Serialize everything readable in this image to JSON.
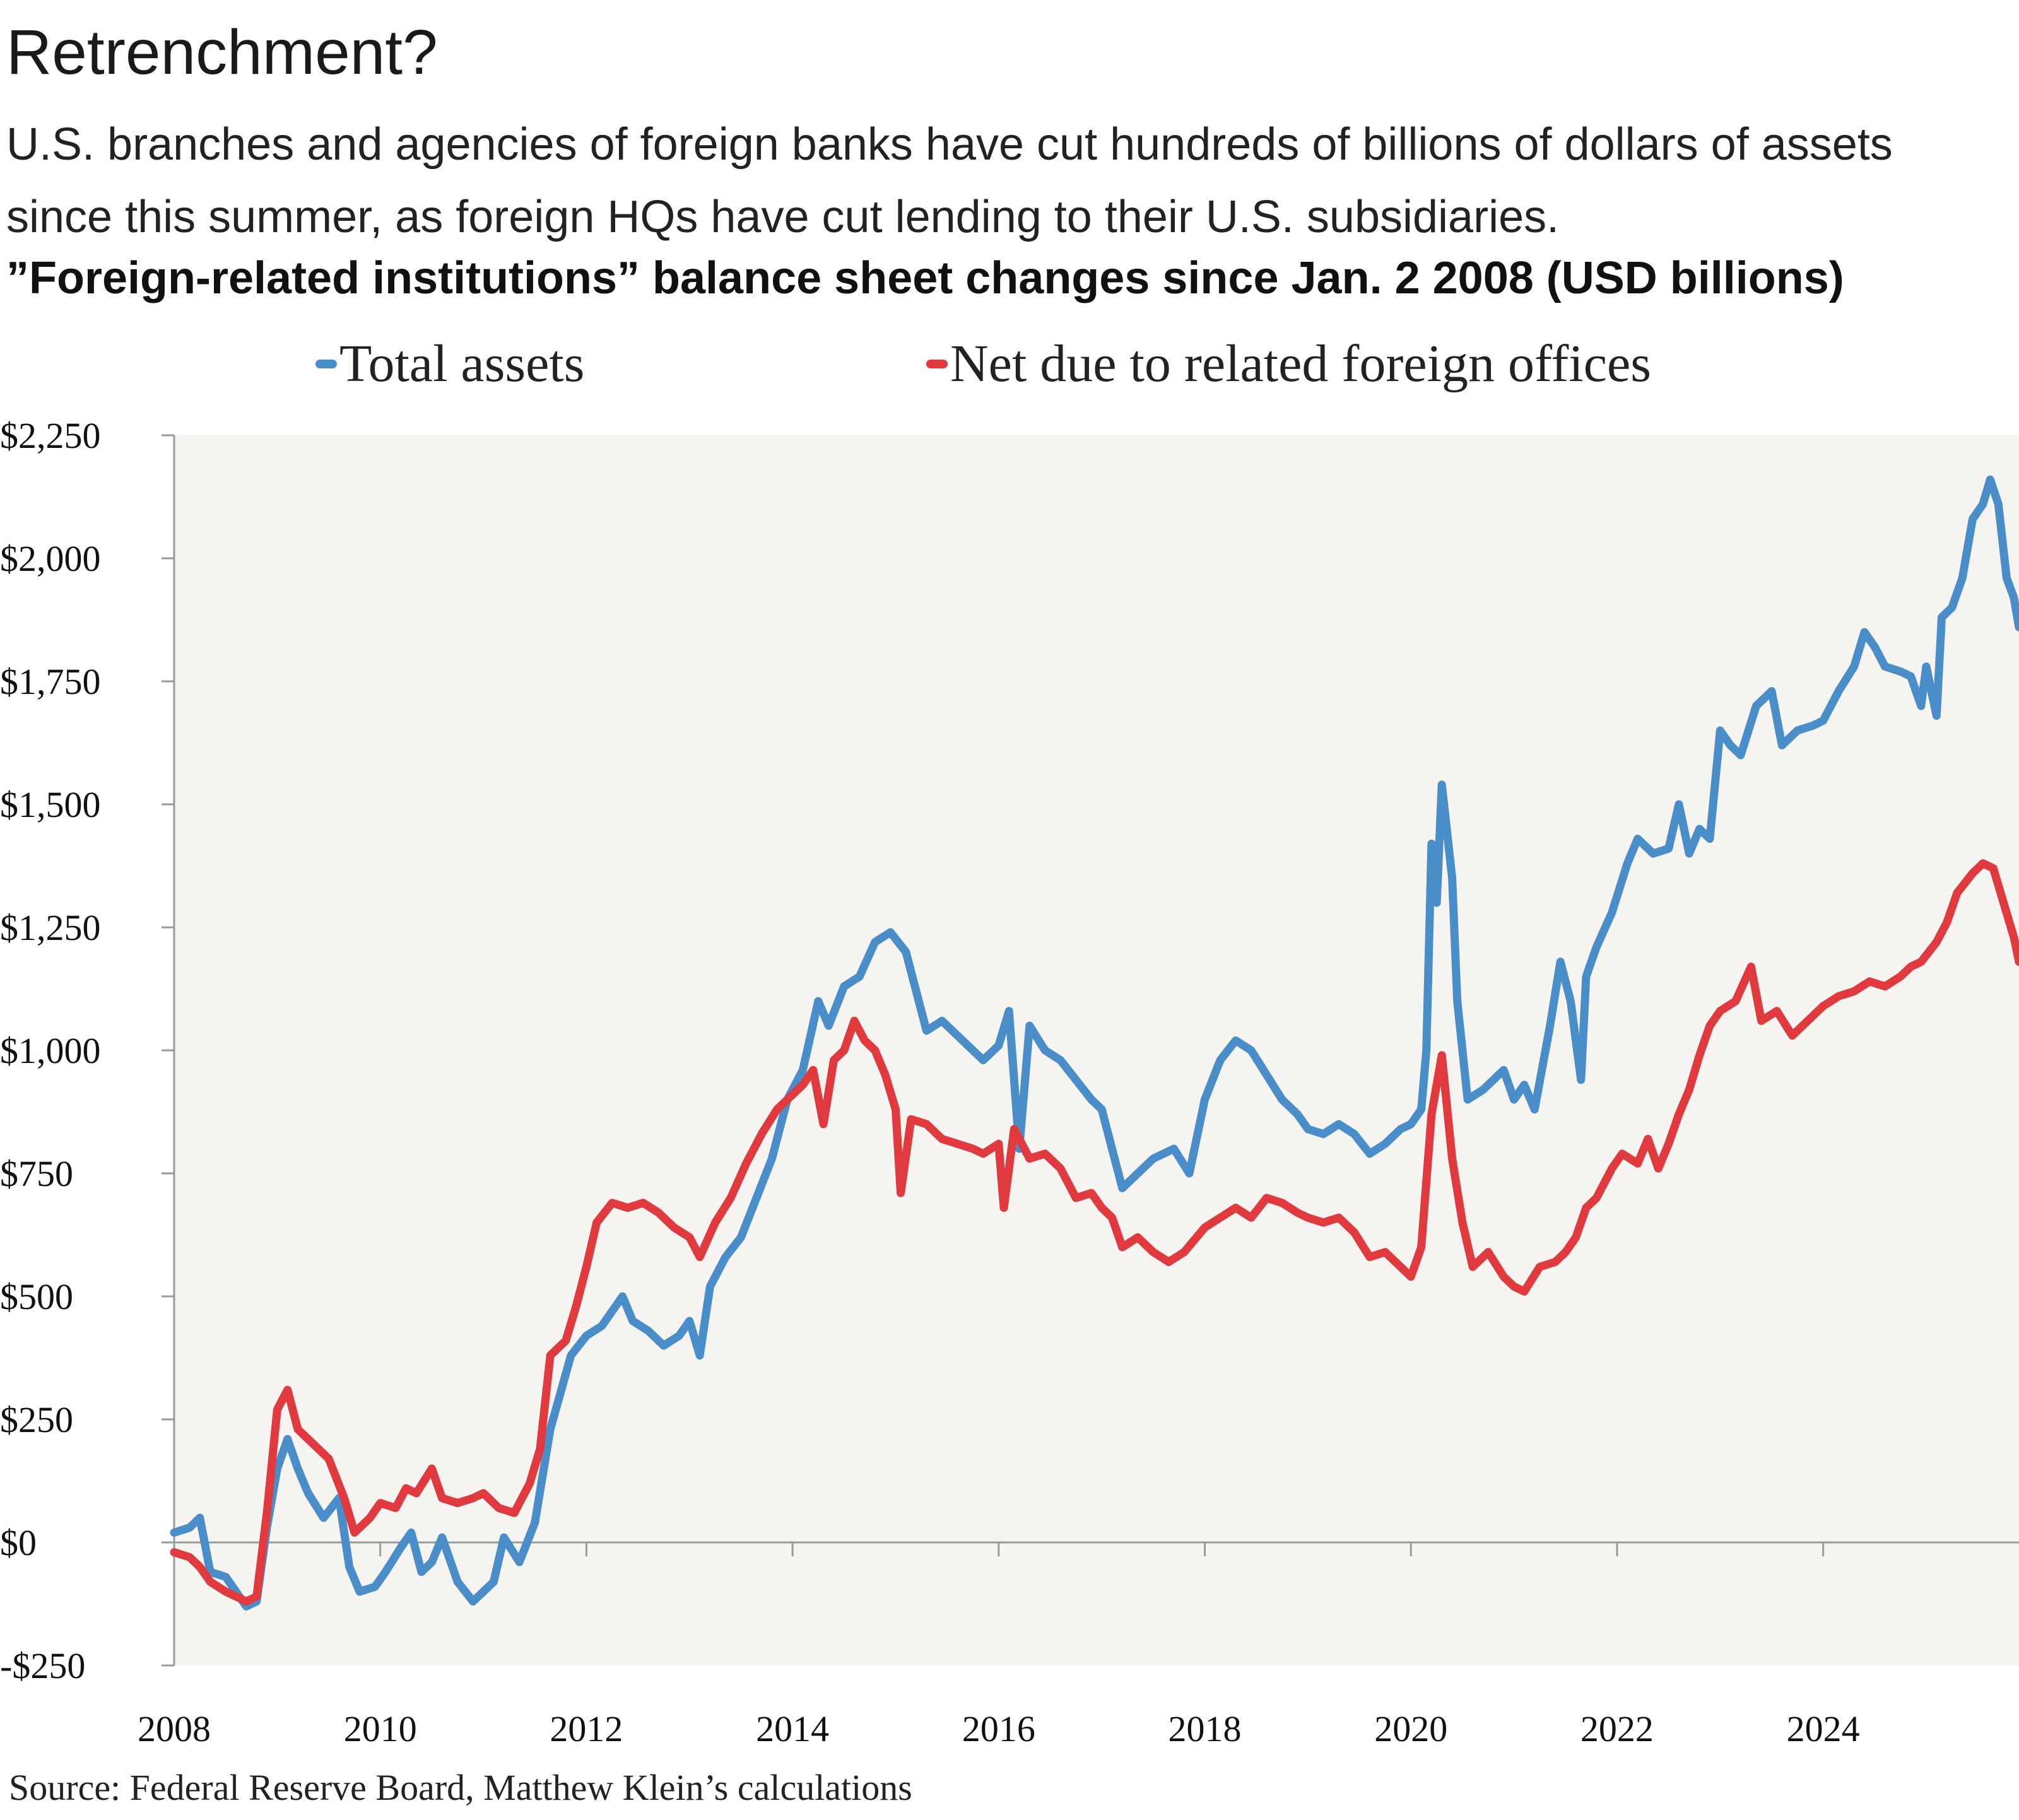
{
  "header": {
    "title": "Retrenchment?",
    "subtitle": "U.S. branches and agencies of foreign banks have cut hundreds of billions of dollars of assets since this summer, as foreign HQs have cut lending to their U.S. subsidiaries.",
    "chart_heading": "”Foreign-related institutions” balance sheet changes since Jan. 2 2008 (USD billions)"
  },
  "footer": {
    "source": "Source: Federal Reserve Board, Matthew Klein’s calculations"
  },
  "colors": {
    "total_assets": "#4a8ec9",
    "net_due": "#e0393e",
    "plot_bg": "#f6f4f1",
    "axis": "#9a9a9a"
  },
  "chart_data": {
    "type": "line",
    "title": "”Foreign-related institutions” balance sheet changes since Jan. 2 2008 (USD billions)",
    "xlabel": "",
    "ylabel": "",
    "xlim": [
      2008.0,
      2025.9
    ],
    "ylim": [
      -250,
      2250
    ],
    "x_ticks": [
      2008,
      2010,
      2012,
      2014,
      2016,
      2018,
      2020,
      2022,
      2024
    ],
    "x_tick_labels": [
      "2008",
      "2010",
      "2012",
      "2014",
      "2016",
      "2018",
      "2020",
      "2022",
      "2024"
    ],
    "y_ticks": [
      -250,
      0,
      250,
      500,
      750,
      1000,
      1250,
      1500,
      1750,
      2000,
      2250
    ],
    "y_tick_labels": [
      "-$250",
      "$0",
      "$250",
      "$500",
      "$750",
      "$1,000",
      "$1,250",
      "$1,500",
      "$1,750",
      "$2,000",
      "$2,250"
    ],
    "grid": false,
    "legend_position": "top",
    "series": [
      {
        "name": "Total assets",
        "color": "#4a8ec9",
        "points": [
          [
            2008.0,
            20
          ],
          [
            2008.15,
            30
          ],
          [
            2008.25,
            50
          ],
          [
            2008.35,
            -60
          ],
          [
            2008.5,
            -70
          ],
          [
            2008.6,
            -100
          ],
          [
            2008.7,
            -130
          ],
          [
            2008.8,
            -120
          ],
          [
            2008.9,
            30
          ],
          [
            2009.0,
            150
          ],
          [
            2009.1,
            210
          ],
          [
            2009.2,
            150
          ],
          [
            2009.3,
            100
          ],
          [
            2009.45,
            50
          ],
          [
            2009.6,
            90
          ],
          [
            2009.7,
            -50
          ],
          [
            2009.8,
            -100
          ],
          [
            2009.95,
            -90
          ],
          [
            2010.05,
            -60
          ],
          [
            2010.2,
            -10
          ],
          [
            2010.3,
            20
          ],
          [
            2010.4,
            -60
          ],
          [
            2010.5,
            -40
          ],
          [
            2010.6,
            10
          ],
          [
            2010.75,
            -80
          ],
          [
            2010.9,
            -120
          ],
          [
            2011.0,
            -100
          ],
          [
            2011.1,
            -80
          ],
          [
            2011.2,
            10
          ],
          [
            2011.35,
            -40
          ],
          [
            2011.5,
            40
          ],
          [
            2011.65,
            230
          ],
          [
            2011.85,
            380
          ],
          [
            2012.0,
            420
          ],
          [
            2012.15,
            440
          ],
          [
            2012.35,
            500
          ],
          [
            2012.45,
            450
          ],
          [
            2012.6,
            430
          ],
          [
            2012.75,
            400
          ],
          [
            2012.9,
            420
          ],
          [
            2013.0,
            450
          ],
          [
            2013.1,
            380
          ],
          [
            2013.2,
            520
          ],
          [
            2013.35,
            580
          ],
          [
            2013.5,
            620
          ],
          [
            2013.65,
            700
          ],
          [
            2013.8,
            780
          ],
          [
            2013.95,
            900
          ],
          [
            2014.1,
            960
          ],
          [
            2014.25,
            1100
          ],
          [
            2014.35,
            1050
          ],
          [
            2014.5,
            1130
          ],
          [
            2014.65,
            1150
          ],
          [
            2014.8,
            1220
          ],
          [
            2014.95,
            1240
          ],
          [
            2015.1,
            1200
          ],
          [
            2015.2,
            1120
          ],
          [
            2015.3,
            1040
          ],
          [
            2015.45,
            1060
          ],
          [
            2015.6,
            1030
          ],
          [
            2015.75,
            1000
          ],
          [
            2015.85,
            980
          ],
          [
            2016.0,
            1010
          ],
          [
            2016.1,
            1080
          ],
          [
            2016.2,
            800
          ],
          [
            2016.3,
            1050
          ],
          [
            2016.45,
            1000
          ],
          [
            2016.6,
            980
          ],
          [
            2016.75,
            940
          ],
          [
            2016.9,
            900
          ],
          [
            2017.0,
            880
          ],
          [
            2017.1,
            800
          ],
          [
            2017.2,
            720
          ],
          [
            2017.35,
            750
          ],
          [
            2017.5,
            780
          ],
          [
            2017.7,
            800
          ],
          [
            2017.85,
            750
          ],
          [
            2018.0,
            900
          ],
          [
            2018.15,
            980
          ],
          [
            2018.3,
            1020
          ],
          [
            2018.45,
            1000
          ],
          [
            2018.6,
            950
          ],
          [
            2018.75,
            900
          ],
          [
            2018.9,
            870
          ],
          [
            2019.0,
            840
          ],
          [
            2019.15,
            830
          ],
          [
            2019.3,
            850
          ],
          [
            2019.45,
            830
          ],
          [
            2019.6,
            790
          ],
          [
            2019.75,
            810
          ],
          [
            2019.9,
            840
          ],
          [
            2020.0,
            850
          ],
          [
            2020.1,
            880
          ],
          [
            2020.15,
            1000
          ],
          [
            2020.2,
            1420
          ],
          [
            2020.25,
            1300
          ],
          [
            2020.3,
            1540
          ],
          [
            2020.4,
            1350
          ],
          [
            2020.45,
            1100
          ],
          [
            2020.55,
            900
          ],
          [
            2020.7,
            920
          ],
          [
            2020.8,
            940
          ],
          [
            2020.9,
            960
          ],
          [
            2021.0,
            900
          ],
          [
            2021.1,
            930
          ],
          [
            2021.2,
            880
          ],
          [
            2021.35,
            1050
          ],
          [
            2021.45,
            1180
          ],
          [
            2021.55,
            1100
          ],
          [
            2021.65,
            940
          ],
          [
            2021.7,
            1150
          ],
          [
            2021.8,
            1210
          ],
          [
            2021.95,
            1280
          ],
          [
            2022.1,
            1380
          ],
          [
            2022.2,
            1430
          ],
          [
            2022.35,
            1400
          ],
          [
            2022.5,
            1410
          ],
          [
            2022.6,
            1500
          ],
          [
            2022.7,
            1400
          ],
          [
            2022.8,
            1450
          ],
          [
            2022.9,
            1430
          ],
          [
            2023.0,
            1650
          ],
          [
            2023.1,
            1620
          ],
          [
            2023.2,
            1600
          ],
          [
            2023.35,
            1700
          ],
          [
            2023.5,
            1730
          ],
          [
            2023.6,
            1620
          ],
          [
            2023.75,
            1650
          ],
          [
            2023.9,
            1660
          ],
          [
            2024.0,
            1670
          ],
          [
            2024.15,
            1730
          ],
          [
            2024.3,
            1780
          ],
          [
            2024.4,
            1850
          ],
          [
            2024.5,
            1820
          ],
          [
            2024.6,
            1780
          ],
          [
            2024.75,
            1770
          ],
          [
            2024.85,
            1760
          ],
          [
            2024.95,
            1700
          ],
          [
            2025.0,
            1780
          ],
          [
            2025.1,
            1680
          ],
          [
            2025.15,
            1880
          ],
          [
            2025.25,
            1900
          ],
          [
            2025.35,
            1960
          ],
          [
            2025.45,
            2080
          ],
          [
            2025.55,
            2110
          ],
          [
            2025.62,
            2160
          ],
          [
            2025.7,
            2110
          ],
          [
            2025.78,
            1960
          ],
          [
            2025.85,
            1920
          ],
          [
            2025.9,
            1860
          ]
        ]
      },
      {
        "name": "Net due to related foreign offices",
        "color": "#e0393e",
        "points": [
          [
            2008.0,
            -20
          ],
          [
            2008.15,
            -30
          ],
          [
            2008.25,
            -50
          ],
          [
            2008.35,
            -80
          ],
          [
            2008.5,
            -100
          ],
          [
            2008.6,
            -110
          ],
          [
            2008.7,
            -120
          ],
          [
            2008.8,
            -110
          ],
          [
            2008.9,
            60
          ],
          [
            2009.0,
            270
          ],
          [
            2009.1,
            310
          ],
          [
            2009.2,
            230
          ],
          [
            2009.35,
            200
          ],
          [
            2009.5,
            170
          ],
          [
            2009.65,
            90
          ],
          [
            2009.75,
            20
          ],
          [
            2009.9,
            50
          ],
          [
            2010.0,
            80
          ],
          [
            2010.15,
            70
          ],
          [
            2010.25,
            110
          ],
          [
            2010.35,
            100
          ],
          [
            2010.5,
            150
          ],
          [
            2010.6,
            90
          ],
          [
            2010.75,
            80
          ],
          [
            2010.9,
            90
          ],
          [
            2011.0,
            100
          ],
          [
            2011.15,
            70
          ],
          [
            2011.3,
            60
          ],
          [
            2011.45,
            120
          ],
          [
            2011.55,
            190
          ],
          [
            2011.65,
            380
          ],
          [
            2011.8,
            410
          ],
          [
            2011.9,
            480
          ],
          [
            2012.0,
            560
          ],
          [
            2012.1,
            650
          ],
          [
            2012.25,
            690
          ],
          [
            2012.4,
            680
          ],
          [
            2012.55,
            690
          ],
          [
            2012.7,
            670
          ],
          [
            2012.85,
            640
          ],
          [
            2013.0,
            620
          ],
          [
            2013.1,
            580
          ],
          [
            2013.25,
            650
          ],
          [
            2013.4,
            700
          ],
          [
            2013.55,
            770
          ],
          [
            2013.7,
            830
          ],
          [
            2013.85,
            880
          ],
          [
            2014.0,
            910
          ],
          [
            2014.1,
            930
          ],
          [
            2014.2,
            960
          ],
          [
            2014.3,
            850
          ],
          [
            2014.4,
            980
          ],
          [
            2014.5,
            1000
          ],
          [
            2014.6,
            1060
          ],
          [
            2014.7,
            1020
          ],
          [
            2014.8,
            1000
          ],
          [
            2014.9,
            950
          ],
          [
            2015.0,
            880
          ],
          [
            2015.05,
            710
          ],
          [
            2015.15,
            860
          ],
          [
            2015.3,
            850
          ],
          [
            2015.45,
            820
          ],
          [
            2015.6,
            810
          ],
          [
            2015.75,
            800
          ],
          [
            2015.85,
            790
          ],
          [
            2016.0,
            810
          ],
          [
            2016.05,
            680
          ],
          [
            2016.15,
            840
          ],
          [
            2016.3,
            780
          ],
          [
            2016.45,
            790
          ],
          [
            2016.6,
            760
          ],
          [
            2016.75,
            700
          ],
          [
            2016.9,
            710
          ],
          [
            2017.0,
            680
          ],
          [
            2017.1,
            660
          ],
          [
            2017.2,
            600
          ],
          [
            2017.35,
            620
          ],
          [
            2017.5,
            590
          ],
          [
            2017.65,
            570
          ],
          [
            2017.8,
            590
          ],
          [
            2018.0,
            640
          ],
          [
            2018.15,
            660
          ],
          [
            2018.3,
            680
          ],
          [
            2018.45,
            660
          ],
          [
            2018.6,
            700
          ],
          [
            2018.75,
            690
          ],
          [
            2018.9,
            670
          ],
          [
            2019.0,
            660
          ],
          [
            2019.15,
            650
          ],
          [
            2019.3,
            660
          ],
          [
            2019.45,
            630
          ],
          [
            2019.6,
            580
          ],
          [
            2019.75,
            590
          ],
          [
            2019.9,
            560
          ],
          [
            2020.0,
            540
          ],
          [
            2020.1,
            600
          ],
          [
            2020.2,
            870
          ],
          [
            2020.3,
            990
          ],
          [
            2020.4,
            780
          ],
          [
            2020.5,
            650
          ],
          [
            2020.6,
            560
          ],
          [
            2020.75,
            590
          ],
          [
            2020.9,
            540
          ],
          [
            2021.0,
            520
          ],
          [
            2021.1,
            510
          ],
          [
            2021.25,
            560
          ],
          [
            2021.4,
            570
          ],
          [
            2021.5,
            590
          ],
          [
            2021.6,
            620
          ],
          [
            2021.7,
            680
          ],
          [
            2021.8,
            700
          ],
          [
            2021.95,
            760
          ],
          [
            2022.05,
            790
          ],
          [
            2022.2,
            770
          ],
          [
            2022.3,
            820
          ],
          [
            2022.4,
            760
          ],
          [
            2022.5,
            810
          ],
          [
            2022.6,
            870
          ],
          [
            2022.7,
            920
          ],
          [
            2022.8,
            990
          ],
          [
            2022.9,
            1050
          ],
          [
            2023.0,
            1080
          ],
          [
            2023.15,
            1100
          ],
          [
            2023.3,
            1170
          ],
          [
            2023.4,
            1060
          ],
          [
            2023.55,
            1080
          ],
          [
            2023.7,
            1030
          ],
          [
            2023.85,
            1060
          ],
          [
            2024.0,
            1090
          ],
          [
            2024.15,
            1110
          ],
          [
            2024.3,
            1120
          ],
          [
            2024.45,
            1140
          ],
          [
            2024.6,
            1130
          ],
          [
            2024.75,
            1150
          ],
          [
            2024.85,
            1170
          ],
          [
            2024.95,
            1180
          ],
          [
            2025.1,
            1220
          ],
          [
            2025.2,
            1260
          ],
          [
            2025.3,
            1320
          ],
          [
            2025.45,
            1360
          ],
          [
            2025.55,
            1380
          ],
          [
            2025.65,
            1370
          ],
          [
            2025.75,
            1300
          ],
          [
            2025.85,
            1230
          ],
          [
            2025.9,
            1180
          ]
        ]
      }
    ]
  }
}
